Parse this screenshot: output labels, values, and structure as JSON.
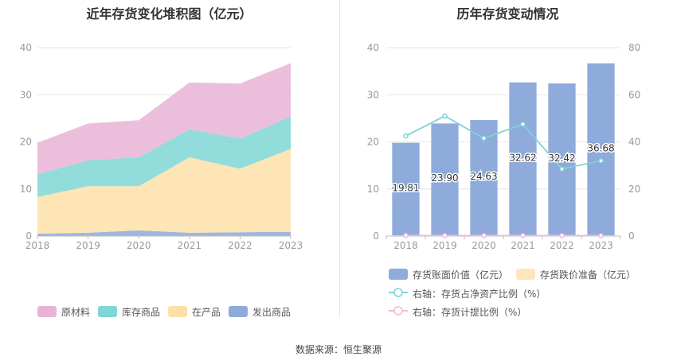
{
  "colors": {
    "raw_material": "#e8b4d6",
    "inventory_goods": "#7fd6d6",
    "wip": "#fde0a8",
    "shipped_goods": "#8fa9db",
    "book_value": "#8fabdb",
    "impairment": "#fde5c0",
    "ratio_line": "#7dd3d8",
    "provision_line": "#f0b8d8",
    "axis_text": "#999999",
    "grid": "#e6e6e6"
  },
  "left_chart": {
    "title": "近年存货变化堆积图（亿元）",
    "legend": [
      {
        "label": "原材料",
        "color_key": "raw_material"
      },
      {
        "label": "库存商品",
        "color_key": "inventory_goods"
      },
      {
        "label": "在产品",
        "color_key": "wip"
      },
      {
        "label": "发出商品",
        "color_key": "shipped_goods"
      }
    ]
  },
  "right_chart": {
    "title": "历年存货变动情况",
    "legend": [
      {
        "label": "存货账面价值（亿元）",
        "color_key": "book_value"
      },
      {
        "label": "存货跌价准备（亿元）",
        "color_key": "impairment"
      },
      {
        "label": "右轴：存货占净资产比例（%）",
        "color_key": "ratio_line"
      },
      {
        "label": "右轴：存货计提比例（%）",
        "color_key": "provision_line"
      }
    ]
  },
  "source": "数据来源：恒生聚源",
  "chart_data": [
    {
      "type": "area",
      "stacked": true,
      "title": "近年存货变化堆积图（亿元）",
      "x": [
        "2018",
        "2019",
        "2020",
        "2021",
        "2022",
        "2023"
      ],
      "ylim": [
        0,
        40
      ],
      "yticks": [
        0,
        10,
        20,
        30,
        40
      ],
      "series": [
        {
          "name": "发出商品",
          "values": [
            0.5,
            0.7,
            1.2,
            0.7,
            0.8,
            0.9
          ]
        },
        {
          "name": "在产品",
          "values": [
            7.8,
            9.9,
            9.4,
            16.0,
            13.5,
            17.6
          ]
        },
        {
          "name": "库存商品",
          "values": [
            4.8,
            5.5,
            6.1,
            6.0,
            6.4,
            6.9
          ]
        },
        {
          "name": "原材料",
          "values": [
            6.7,
            7.8,
            7.9,
            9.9,
            11.7,
            11.3
          ]
        }
      ],
      "legend_position": "bottom"
    },
    {
      "type": "bar",
      "title": "历年存货变动情况",
      "categories": [
        "2018",
        "2019",
        "2020",
        "2021",
        "2022",
        "2023"
      ],
      "ylim": [
        0,
        40
      ],
      "yticks": [
        0,
        10,
        20,
        30,
        40
      ],
      "y2lim": [
        0,
        80
      ],
      "y2ticks": [
        0,
        20,
        40,
        60,
        80
      ],
      "series": [
        {
          "name": "存货账面价值（亿元）",
          "type": "bar",
          "axis": "left",
          "values": [
            19.81,
            23.9,
            24.63,
            32.62,
            32.42,
            36.68
          ],
          "labels": [
            "19.81",
            "23.90",
            "24.63",
            "32.62",
            "32.42",
            "36.68"
          ]
        },
        {
          "name": "存货跌价准备（亿元）",
          "type": "bar",
          "axis": "left",
          "values": [
            0.05,
            0.05,
            0.05,
            0.05,
            0.05,
            0.05
          ]
        },
        {
          "name": "右轴：存货占净资产比例（%）",
          "type": "line",
          "axis": "right",
          "values": [
            42.5,
            51.0,
            41.5,
            47.5,
            28.5,
            32.0
          ]
        },
        {
          "name": "右轴：存货计提比例（%）",
          "type": "line",
          "axis": "right",
          "values": [
            0.2,
            0.2,
            0.2,
            0.2,
            0.2,
            0.2
          ]
        }
      ],
      "legend_position": "bottom"
    }
  ]
}
